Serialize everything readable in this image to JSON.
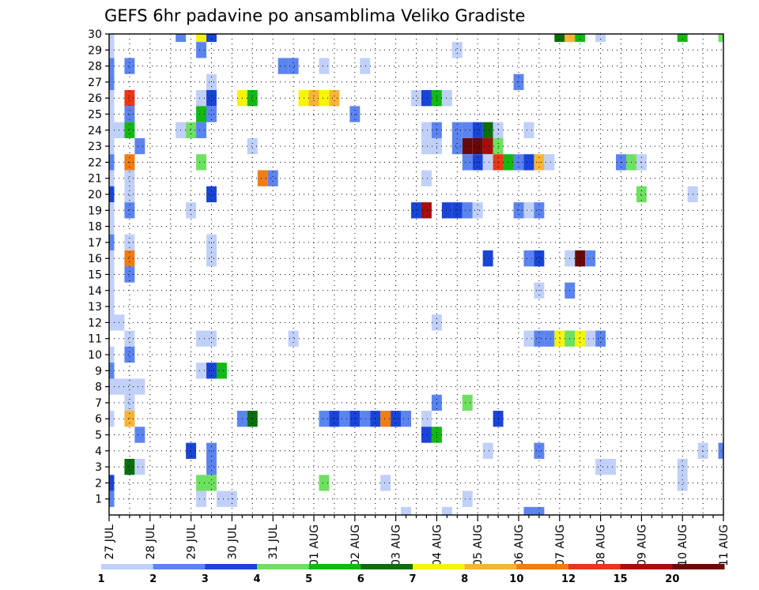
{
  "chart_data": {
    "type": "heatmap",
    "title": "GEFS 6hr padavine po ansamblima Veliko Gradiste",
    "xlabel": "",
    "ylabel": "",
    "x_tick_labels": [
      "27 JUL",
      "28 JUL",
      "29 JUL",
      "30 JUL",
      "31 JUL",
      "01 AUG",
      "02 AUG",
      "03 AUG",
      "04 AUG",
      "05 AUG",
      "06 AUG",
      "07 AUG",
      "08 AUG",
      "09 AUG",
      "10 AUG",
      "11 AUG"
    ],
    "y_tick_labels": [
      "1",
      "2",
      "3",
      "4",
      "5",
      "6",
      "7",
      "8",
      "9",
      "10",
      "11",
      "12",
      "13",
      "14",
      "15",
      "16",
      "17",
      "18",
      "19",
      "20",
      "21",
      "22",
      "23",
      "24",
      "25",
      "26",
      "27",
      "28",
      "29",
      "30"
    ],
    "xlim_steps": [
      0,
      60
    ],
    "steps_per_day": 4,
    "ylim_members": [
      0,
      30
    ],
    "grid": true,
    "grid_style": "dotted",
    "colorbar": {
      "position": "bottom",
      "tick_labels": [
        "1",
        "2",
        "3",
        "4",
        "5",
        "6",
        "7",
        "8",
        "10",
        "12",
        "15",
        "20"
      ],
      "colors": [
        "#c0d0f8",
        "#5c84f0",
        "#1a44d8",
        "#6ee060",
        "#14b814",
        "#0a6e0a",
        "#f4f40c",
        "#f8b438",
        "#f07c14",
        "#e83818",
        "#a80c0c",
        "#6a0808"
      ]
    },
    "cells": [
      {
        "member": 30,
        "step": 0,
        "lvl": 0
      },
      {
        "member": 29,
        "step": 0,
        "lvl": 0
      },
      {
        "member": 28,
        "step": 0,
        "lvl": 1
      },
      {
        "member": 27,
        "step": 0,
        "lvl": 1
      },
      {
        "member": 26,
        "step": 0,
        "lvl": 0
      },
      {
        "member": 25,
        "step": 0,
        "lvl": 0
      },
      {
        "member": 24,
        "step": 0,
        "lvl": 0
      },
      {
        "member": 24,
        "step": 1,
        "lvl": 0
      },
      {
        "member": 23,
        "step": 0,
        "lvl": 0
      },
      {
        "member": 22,
        "step": 0,
        "lvl": 1
      },
      {
        "member": 21,
        "step": 0,
        "lvl": 0
      },
      {
        "member": 20,
        "step": 0,
        "lvl": 2
      },
      {
        "member": 19,
        "step": 0,
        "lvl": 0
      },
      {
        "member": 18,
        "step": 0,
        "lvl": 0
      },
      {
        "member": 17,
        "step": 0,
        "lvl": 1
      },
      {
        "member": 16,
        "step": 0,
        "lvl": 0
      },
      {
        "member": 15,
        "step": 0,
        "lvl": 0
      },
      {
        "member": 14,
        "step": 0,
        "lvl": 0
      },
      {
        "member": 13,
        "step": 0,
        "lvl": 0
      },
      {
        "member": 12,
        "step": 0,
        "lvl": 0
      },
      {
        "member": 12,
        "step": 1,
        "lvl": 0
      },
      {
        "member": 10,
        "step": 0,
        "lvl": 0
      },
      {
        "member": 9,
        "step": 0,
        "lvl": 1
      },
      {
        "member": 8,
        "step": 0,
        "lvl": 0
      },
      {
        "member": 8,
        "step": 1,
        "lvl": 0
      },
      {
        "member": 8,
        "step": 2,
        "lvl": 0
      },
      {
        "member": 8,
        "step": 3,
        "lvl": 0
      },
      {
        "member": 6,
        "step": 0,
        "lvl": 0
      },
      {
        "member": 2,
        "step": 0,
        "lvl": 2
      },
      {
        "member": 1,
        "step": 0,
        "lvl": 1
      },
      {
        "member": 28,
        "step": 2,
        "lvl": 1
      },
      {
        "member": 26,
        "step": 2,
        "lvl": 9
      },
      {
        "member": 25,
        "step": 2,
        "lvl": 1
      },
      {
        "member": 24,
        "step": 2,
        "lvl": 4
      },
      {
        "member": 22,
        "step": 2,
        "lvl": 8
      },
      {
        "member": 21,
        "step": 2,
        "lvl": 0
      },
      {
        "member": 20,
        "step": 2,
        "lvl": 0
      },
      {
        "member": 19,
        "step": 2,
        "lvl": 1
      },
      {
        "member": 17,
        "step": 2,
        "lvl": 0
      },
      {
        "member": 16,
        "step": 2,
        "lvl": 8
      },
      {
        "member": 15,
        "step": 2,
        "lvl": 1
      },
      {
        "member": 11,
        "step": 2,
        "lvl": 0
      },
      {
        "member": 10,
        "step": 2,
        "lvl": 1
      },
      {
        "member": 7,
        "step": 2,
        "lvl": 0
      },
      {
        "member": 6,
        "step": 2,
        "lvl": 7
      },
      {
        "member": 3,
        "step": 2,
        "lvl": 5
      },
      {
        "member": 23,
        "step": 3,
        "lvl": 1
      },
      {
        "member": 5,
        "step": 3,
        "lvl": 1
      },
      {
        "member": 3,
        "step": 3,
        "lvl": 0
      },
      {
        "member": 30,
        "step": 7,
        "lvl": 1
      },
      {
        "member": 24,
        "step": 7,
        "lvl": 0
      },
      {
        "member": 24,
        "step": 8,
        "lvl": 3
      },
      {
        "member": 19,
        "step": 8,
        "lvl": 0
      },
      {
        "member": 4,
        "step": 8,
        "lvl": 2
      },
      {
        "member": 30,
        "step": 9,
        "lvl": 6
      },
      {
        "member": 29,
        "step": 9,
        "lvl": 1
      },
      {
        "member": 26,
        "step": 9,
        "lvl": 0
      },
      {
        "member": 25,
        "step": 9,
        "lvl": 4
      },
      {
        "member": 24,
        "step": 9,
        "lvl": 1
      },
      {
        "member": 22,
        "step": 9,
        "lvl": 3
      },
      {
        "member": 11,
        "step": 9,
        "lvl": 0
      },
      {
        "member": 9,
        "step": 9,
        "lvl": 0
      },
      {
        "member": 2,
        "step": 9,
        "lvl": 3
      },
      {
        "member": 1,
        "step": 9,
        "lvl": 0
      },
      {
        "member": 30,
        "step": 10,
        "lvl": 2
      },
      {
        "member": 27,
        "step": 10,
        "lvl": 0
      },
      {
        "member": 26,
        "step": 10,
        "lvl": 2
      },
      {
        "member": 25,
        "step": 10,
        "lvl": 1
      },
      {
        "member": 20,
        "step": 10,
        "lvl": 2
      },
      {
        "member": 17,
        "step": 10,
        "lvl": 0
      },
      {
        "member": 16,
        "step": 10,
        "lvl": 0
      },
      {
        "member": 11,
        "step": 10,
        "lvl": 0
      },
      {
        "member": 9,
        "step": 10,
        "lvl": 2
      },
      {
        "member": 4,
        "step": 10,
        "lvl": 1
      },
      {
        "member": 3,
        "step": 10,
        "lvl": 1
      },
      {
        "member": 2,
        "step": 10,
        "lvl": 3
      },
      {
        "member": 1,
        "step": 11,
        "lvl": 0
      },
      {
        "member": 9,
        "step": 11,
        "lvl": 4
      },
      {
        "member": 1,
        "step": 12,
        "lvl": 0
      },
      {
        "member": 26,
        "step": 13,
        "lvl": 6
      },
      {
        "member": 26,
        "step": 14,
        "lvl": 4
      },
      {
        "member": 6,
        "step": 13,
        "lvl": 1
      },
      {
        "member": 6,
        "step": 14,
        "lvl": 5
      },
      {
        "member": 23,
        "step": 14,
        "lvl": 0
      },
      {
        "member": 21,
        "step": 15,
        "lvl": 8
      },
      {
        "member": 21,
        "step": 16,
        "lvl": 1
      },
      {
        "member": 28,
        "step": 17,
        "lvl": 1
      },
      {
        "member": 28,
        "step": 18,
        "lvl": 1
      },
      {
        "member": 11,
        "step": 18,
        "lvl": 0
      },
      {
        "member": 26,
        "step": 19,
        "lvl": 6
      },
      {
        "member": 26,
        "step": 20,
        "lvl": 7
      },
      {
        "member": 26,
        "step": 21,
        "lvl": 6
      },
      {
        "member": 26,
        "step": 22,
        "lvl": 7
      },
      {
        "member": 28,
        "step": 21,
        "lvl": 0
      },
      {
        "member": 2,
        "step": 21,
        "lvl": 3
      },
      {
        "member": 6,
        "step": 21,
        "lvl": 1
      },
      {
        "member": 6,
        "step": 22,
        "lvl": 2
      },
      {
        "member": 6,
        "step": 23,
        "lvl": 1
      },
      {
        "member": 6,
        "step": 24,
        "lvl": 2
      },
      {
        "member": 6,
        "step": 25,
        "lvl": 1
      },
      {
        "member": 6,
        "step": 26,
        "lvl": 2
      },
      {
        "member": 6,
        "step": 27,
        "lvl": 8
      },
      {
        "member": 6,
        "step": 28,
        "lvl": 2
      },
      {
        "member": 6,
        "step": 29,
        "lvl": 1
      },
      {
        "member": 6,
        "step": 31,
        "lvl": 0
      },
      {
        "member": 25,
        "step": 24,
        "lvl": 1
      },
      {
        "member": 28,
        "step": 25,
        "lvl": 0
      },
      {
        "member": 2,
        "step": 27,
        "lvl": 0
      },
      {
        "member": 0,
        "step": 29,
        "lvl": 0
      },
      {
        "member": 19,
        "step": 30,
        "lvl": 2
      },
      {
        "member": 19,
        "step": 31,
        "lvl": 10
      },
      {
        "member": 26,
        "step": 30,
        "lvl": 0
      },
      {
        "member": 26,
        "step": 31,
        "lvl": 2
      },
      {
        "member": 26,
        "step": 32,
        "lvl": 4
      },
      {
        "member": 26,
        "step": 33,
        "lvl": 0
      },
      {
        "member": 24,
        "step": 31,
        "lvl": 0
      },
      {
        "member": 24,
        "step": 32,
        "lvl": 1
      },
      {
        "member": 23,
        "step": 31,
        "lvl": 0
      },
      {
        "member": 23,
        "step": 32,
        "lvl": 0
      },
      {
        "member": 21,
        "step": 31,
        "lvl": 0
      },
      {
        "member": 12,
        "step": 32,
        "lvl": 0
      },
      {
        "member": 7,
        "step": 32,
        "lvl": 1
      },
      {
        "member": 5,
        "step": 31,
        "lvl": 2
      },
      {
        "member": 5,
        "step": 32,
        "lvl": 4
      },
      {
        "member": 0,
        "step": 33,
        "lvl": 0
      },
      {
        "member": 24,
        "step": 34,
        "lvl": 1
      },
      {
        "member": 24,
        "step": 35,
        "lvl": 1
      },
      {
        "member": 24,
        "step": 36,
        "lvl": 2
      },
      {
        "member": 24,
        "step": 37,
        "lvl": 5
      },
      {
        "member": 24,
        "step": 38,
        "lvl": 0
      },
      {
        "member": 24,
        "step": 41,
        "lvl": 0
      },
      {
        "member": 23,
        "step": 35,
        "lvl": 11
      },
      {
        "member": 23,
        "step": 36,
        "lvl": 11
      },
      {
        "member": 23,
        "step": 37,
        "lvl": 10
      },
      {
        "member": 23,
        "step": 38,
        "lvl": 3
      },
      {
        "member": 23,
        "step": 34,
        "lvl": 1
      },
      {
        "member": 22,
        "step": 35,
        "lvl": 1
      },
      {
        "member": 22,
        "step": 36,
        "lvl": 2
      },
      {
        "member": 22,
        "step": 37,
        "lvl": 0
      },
      {
        "member": 22,
        "step": 38,
        "lvl": 9
      },
      {
        "member": 22,
        "step": 39,
        "lvl": 4
      },
      {
        "member": 22,
        "step": 40,
        "lvl": 1
      },
      {
        "member": 22,
        "step": 41,
        "lvl": 2
      },
      {
        "member": 22,
        "step": 42,
        "lvl": 7
      },
      {
        "member": 22,
        "step": 43,
        "lvl": 0
      },
      {
        "member": 22,
        "step": 50,
        "lvl": 1
      },
      {
        "member": 22,
        "step": 51,
        "lvl": 3
      },
      {
        "member": 22,
        "step": 52,
        "lvl": 0
      },
      {
        "member": 19,
        "step": 33,
        "lvl": 2
      },
      {
        "member": 19,
        "step": 34,
        "lvl": 2
      },
      {
        "member": 19,
        "step": 35,
        "lvl": 1
      },
      {
        "member": 19,
        "step": 36,
        "lvl": 0
      },
      {
        "member": 19,
        "step": 40,
        "lvl": 1
      },
      {
        "member": 19,
        "step": 41,
        "lvl": 0
      },
      {
        "member": 19,
        "step": 42,
        "lvl": 1
      },
      {
        "member": 29,
        "step": 34,
        "lvl": 0
      },
      {
        "member": 27,
        "step": 40,
        "lvl": 1
      },
      {
        "member": 16,
        "step": 37,
        "lvl": 2
      },
      {
        "member": 16,
        "step": 41,
        "lvl": 1
      },
      {
        "member": 16,
        "step": 42,
        "lvl": 2
      },
      {
        "member": 16,
        "step": 45,
        "lvl": 0
      },
      {
        "member": 16,
        "step": 46,
        "lvl": 11
      },
      {
        "member": 16,
        "step": 47,
        "lvl": 1
      },
      {
        "member": 14,
        "step": 42,
        "lvl": 0
      },
      {
        "member": 14,
        "step": 45,
        "lvl": 1
      },
      {
        "member": 11,
        "step": 41,
        "lvl": 0
      },
      {
        "member": 11,
        "step": 42,
        "lvl": 1
      },
      {
        "member": 11,
        "step": 43,
        "lvl": 1
      },
      {
        "member": 11,
        "step": 44,
        "lvl": 6
      },
      {
        "member": 11,
        "step": 45,
        "lvl": 3
      },
      {
        "member": 11,
        "step": 46,
        "lvl": 6
      },
      {
        "member": 11,
        "step": 47,
        "lvl": 0
      },
      {
        "member": 11,
        "step": 48,
        "lvl": 1
      },
      {
        "member": 7,
        "step": 35,
        "lvl": 3
      },
      {
        "member": 6,
        "step": 38,
        "lvl": 2
      },
      {
        "member": 4,
        "step": 37,
        "lvl": 0
      },
      {
        "member": 1,
        "step": 35,
        "lvl": 0
      },
      {
        "member": 4,
        "step": 42,
        "lvl": 1
      },
      {
        "member": 0,
        "step": 41,
        "lvl": 1
      },
      {
        "member": 0,
        "step": 42,
        "lvl": 1
      },
      {
        "member": 30,
        "step": 44,
        "lvl": 5
      },
      {
        "member": 30,
        "step": 45,
        "lvl": 7
      },
      {
        "member": 30,
        "step": 46,
        "lvl": 4
      },
      {
        "member": 30,
        "step": 48,
        "lvl": 0
      },
      {
        "member": 30,
        "step": 56,
        "lvl": 4
      },
      {
        "member": 30,
        "step": 60,
        "lvl": 3
      },
      {
        "member": 20,
        "step": 52,
        "lvl": 3
      },
      {
        "member": 20,
        "step": 57,
        "lvl": 0
      },
      {
        "member": 3,
        "step": 48,
        "lvl": 0
      },
      {
        "member": 3,
        "step": 49,
        "lvl": 0
      },
      {
        "member": 3,
        "step": 56,
        "lvl": 0
      },
      {
        "member": 2,
        "step": 56,
        "lvl": 0
      },
      {
        "member": 4,
        "step": 58,
        "lvl": 0
      },
      {
        "member": 4,
        "step": 60,
        "lvl": 1
      }
    ]
  }
}
